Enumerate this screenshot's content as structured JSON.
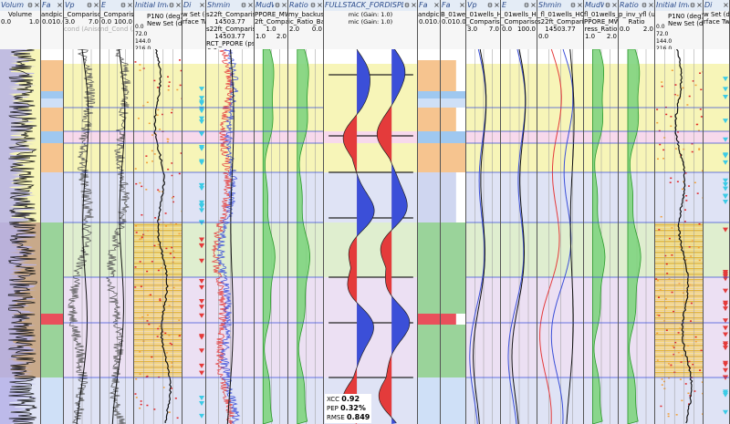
{
  "tracks": [
    {
      "key": "volume",
      "title": "Volum",
      "lines": [
        "Volume"
      ],
      "scale": [
        "0.0",
        "1.0"
      ]
    },
    {
      "key": "fa1",
      "title": "Fa",
      "lines": [
        "andpick3"
      ],
      "scale": [
        "0.0",
        "10.0"
      ]
    },
    {
      "key": "vp",
      "title": "Vp",
      "lines": [
        "_Comparison"
      ],
      "scale": [
        "3.0",
        "7.0"
      ],
      "extra": "cond (Aniso)"
    },
    {
      "key": "e",
      "title": "E",
      "lines": [
        "_Comparison"
      ],
      "scale": [
        "0.0",
        "100.0"
      ],
      "extra": "nd_Cond (Am)"
    },
    {
      "key": "img1",
      "title": "Initial Imag",
      "lines": [
        "P1N0 (deg)",
        "New Set (deg)"
      ],
      "vscale": [
        "0.0",
        "72.0",
        "144.0",
        "216.0",
        "288.0",
        "360.0"
      ]
    },
    {
      "key": "dir1",
      "title": "Di",
      "lines": [
        "w Set (de",
        "rface Tw"
      ],
      "scale": []
    },
    {
      "key": "shmin1",
      "title": "Shmin",
      "lines": [
        "s22ft_Comparison",
        "14503.77",
        "s22ft_Comparison",
        "14503.77",
        "RCT_PPORE (psi)"
      ],
      "scale": [
        "0.0"
      ]
    },
    {
      "key": "mudw1",
      "title": "MudWi",
      "lines": [
        "PPORE_MWv",
        "2ft_Comparison",
        "1.0"
      ],
      "scale": [
        "1.0",
        "2.0"
      ]
    },
    {
      "key": "ratio1",
      "title": "Ratio",
      "lines": [
        "my_backus (u",
        "ic_Ratio_Back"
      ],
      "scale": [
        "2.0",
        "0.0"
      ]
    },
    {
      "key": "seismic",
      "title": "FULLSTACK_FORDISPLAY",
      "lines": [
        "mic (Gain: 1.0)",
        "mic (Gain: 1.0)"
      ],
      "scale": []
    },
    {
      "key": "fa2",
      "title": "Fa",
      "lines": [
        "andpick3"
      ],
      "scale": [
        "0.0",
        "10.0"
      ]
    },
    {
      "key": "fa3",
      "title": "Fa",
      "lines": [
        "B_01wells"
      ],
      "scale": [
        "0.0",
        "10.0"
      ]
    },
    {
      "key": "vp2",
      "title": "Vp",
      "lines": [
        "_01wells_HC",
        "_Comparison"
      ],
      "scale": [
        "3.0",
        "7.0"
      ]
    },
    {
      "key": "e2",
      "title": "E",
      "lines": [
        "_01wells_HC",
        "_Comparison"
      ],
      "scale": [
        "0.0",
        "100.0"
      ]
    },
    {
      "key": "shmin2",
      "title": "Shmin",
      "lines": [
        "_fl_01wells_HC",
        "s22ft_Comparison",
        "14503.77"
      ],
      "scale": [
        "0.0"
      ]
    },
    {
      "key": "mudw2",
      "title": "MudWi",
      "lines": [
        "fl_01wells_HC",
        "PPORE_MWv",
        "ress_Ratio"
      ],
      "scale": [
        "1.0",
        "2.0"
      ]
    },
    {
      "key": "ratio2",
      "title": "Ratio",
      "lines": [
        "p_inv_yfl (unit",
        "Ratio"
      ],
      "scale": [
        "0.0",
        "2.0"
      ]
    },
    {
      "key": "img2",
      "title": "Initial Imag",
      "lines": [
        "P1N0 (deg)",
        "New Set (deg)"
      ],
      "vscale": [
        "0.0",
        "72.0",
        "144.0",
        "216.0",
        "288.0",
        "360.0"
      ]
    },
    {
      "key": "dir2",
      "title": "Di",
      "lines": [
        "w Set (de",
        "rface Tw"
      ],
      "scale": []
    }
  ],
  "qc": {
    "xcc_label": "XCC",
    "xcc": "0.92",
    "pep_label": "PEP",
    "pep": "0.32%",
    "rmse_label": "RMSE",
    "rmse": "0.849"
  },
  "colors": {
    "header": "#e4ecf6",
    "zone_yellow": "#f7f5b8",
    "zone_blue": "#dfe3f5",
    "zone_pink": "#f7d9ec",
    "zone_green": "#dfeecf",
    "facies_orange": "#f6c48f",
    "facies_green": "#9ad39a",
    "facies_blue": "#9fc8f0",
    "seis_blue": "#3b4fd8",
    "seis_red": "#e43b3b",
    "mudweight_fill": "#7fd47f"
  },
  "icons": {
    "track_menu": "track-menu-icon",
    "track_close": "track-close-icon"
  }
}
